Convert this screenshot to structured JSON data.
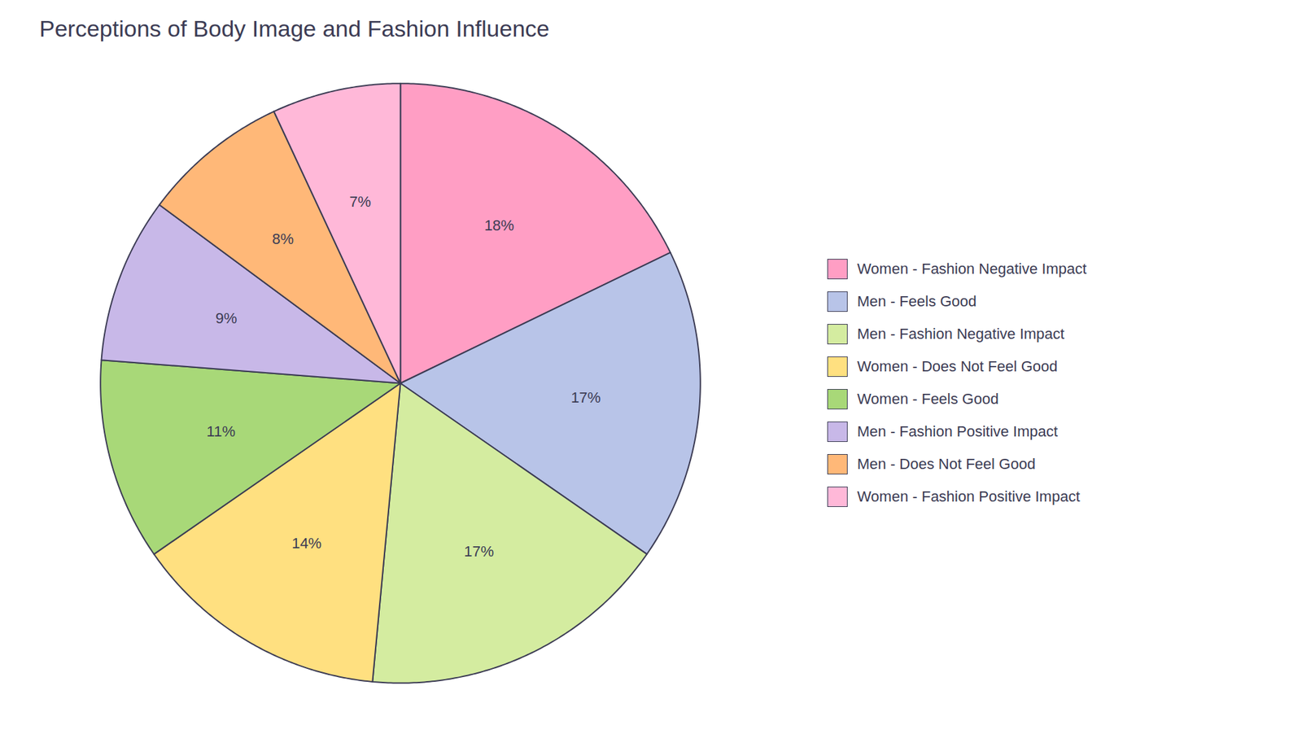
{
  "chart_data": {
    "type": "pie",
    "title": "Perceptions of Body Image and Fashion Influence",
    "categories": [
      "Women - Fashion Negative Impact",
      "Men - Feels Good",
      "Men - Fashion Negative Impact",
      "Women - Does Not Feel Good",
      "Women - Feels Good",
      "Men - Fashion Positive Impact",
      "Men - Does Not Feel Good",
      "Women - Fashion Positive Impact"
    ],
    "values": [
      18,
      17,
      17,
      14,
      11,
      9,
      8,
      7
    ],
    "value_labels": [
      "18%",
      "17%",
      "17%",
      "14%",
      "11%",
      "9%",
      "8%",
      "7%"
    ],
    "colors": [
      "#FF9EC4",
      "#B8C4E8",
      "#D4ECA0",
      "#FFE080",
      "#A8D878",
      "#C8B8E8",
      "#FFB878",
      "#FFB8D8"
    ],
    "data_labels": true,
    "legend": "right"
  }
}
